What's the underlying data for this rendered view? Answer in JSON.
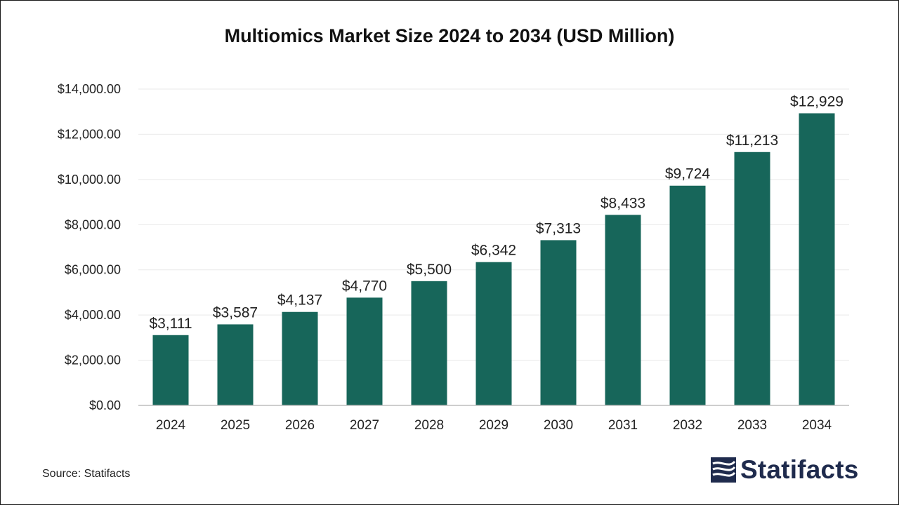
{
  "chart_data": {
    "type": "bar",
    "title": "Multiomics Market Size 2024 to 2034 (USD Million)",
    "categories": [
      "2024",
      "2025",
      "2026",
      "2027",
      "2028",
      "2029",
      "2030",
      "2031",
      "2032",
      "2033",
      "2034"
    ],
    "values": [
      3111,
      3587,
      4137,
      4770,
      5500,
      6342,
      7313,
      8433,
      9724,
      11213,
      12929
    ],
    "value_labels": [
      "$3,111",
      "$3,587",
      "$4,137",
      "$4,770",
      "$5,500",
      "$6,342",
      "$7,313",
      "$8,433",
      "$9,724",
      "$11,213",
      "$12,929"
    ],
    "y_ticks": [
      0,
      2000,
      4000,
      6000,
      8000,
      10000,
      12000,
      14000
    ],
    "y_tick_labels": [
      "$0.00",
      "$2,000.00",
      "$4,000.00",
      "$6,000.00",
      "$8,000.00",
      "$10,000.00",
      "$12,000.00",
      "$14,000.00"
    ],
    "ylim": [
      0,
      14000
    ],
    "xlabel": "",
    "ylabel": "",
    "grid": true,
    "bar_color": "#17665a"
  },
  "source": "Source: Statifacts",
  "brand": {
    "name": "Statifacts",
    "icon": "statifacts-logo-icon",
    "color": "#1f2b4d"
  }
}
